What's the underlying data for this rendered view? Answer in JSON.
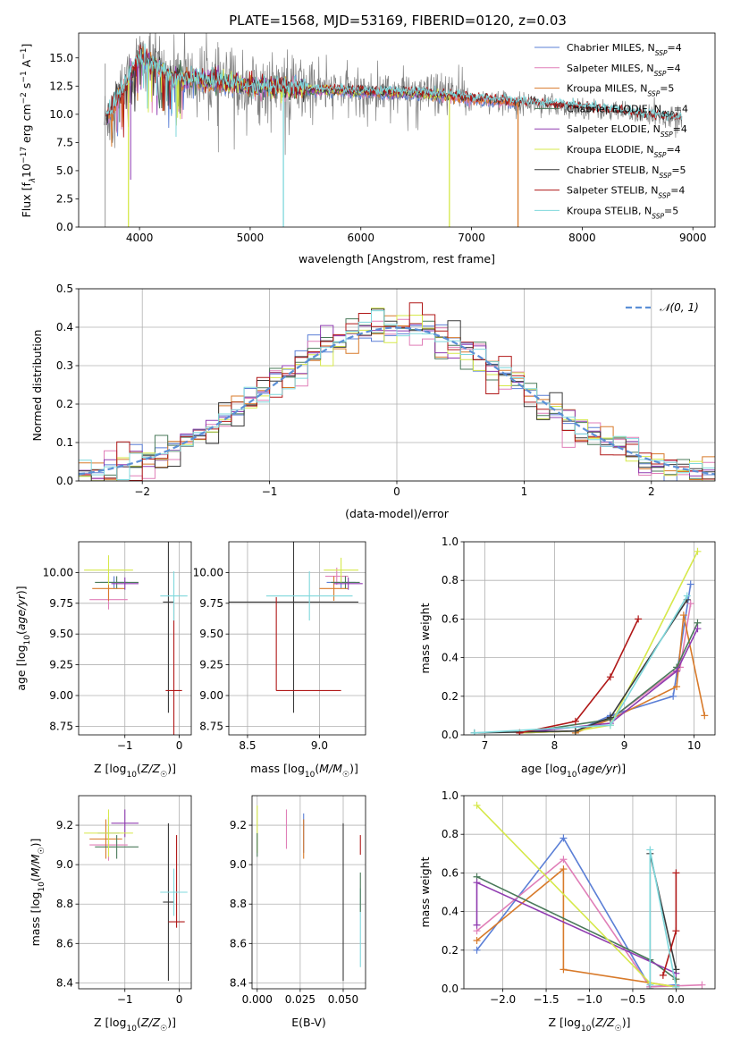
{
  "title": "PLATE=1568, MJD=53169, FIBERID=0120, z=0.03",
  "colors": {
    "chabrier_miles": "#5b7fd6",
    "salpeter_miles": "#e07fb8",
    "kroupa_miles": "#d87a2a",
    "chabrier_elodie": "#4a7a5a",
    "salpeter_elodie": "#8f3bb0",
    "kroupa_elodie": "#d6e84a",
    "chabrier_stelib": "#3a3a3a",
    "salpeter_stelib": "#b01818",
    "kroupa_stelib": "#7fd8dc",
    "data": "#808080",
    "normal": "#5b8fd6"
  },
  "chart_data": [
    {
      "id": "spectrum",
      "type": "line",
      "xlabel": "wavelength [Angstrom, rest frame]",
      "ylabel": "Flux [f_λ 10^-17 erg cm^-2 s^-1 A^-1]",
      "xlim": [
        3450,
        9200
      ],
      "ylim": [
        0,
        17.2
      ],
      "xticks": [
        4000,
        5000,
        6000,
        7000,
        8000,
        9000
      ],
      "yticks": [
        0.0,
        2.5,
        5.0,
        7.5,
        10.0,
        12.5,
        15.0
      ],
      "legend_position": "upper right",
      "legend": [
        {
          "label": "Chabrier MILES, N",
          "sub": "SSP",
          "tail": "=4",
          "key": "chabrier_miles"
        },
        {
          "label": "Salpeter MILES, N",
          "sub": "SSP",
          "tail": "=4",
          "key": "salpeter_miles"
        },
        {
          "label": "Kroupa MILES, N",
          "sub": "SSP",
          "tail": "=5",
          "key": "kroupa_miles"
        },
        {
          "label": "Chabrier ELODIE, N",
          "sub": "SSP",
          "tail": "=4",
          "key": "chabrier_elodie"
        },
        {
          "label": "Salpeter ELODIE, N",
          "sub": "SSP",
          "tail": "=4",
          "key": "salpeter_elodie"
        },
        {
          "label": "Kroupa ELODIE, N",
          "sub": "SSP",
          "tail": "=4",
          "key": "kroupa_elodie"
        },
        {
          "label": "Chabrier STELIB, N",
          "sub": "SSP",
          "tail": "=5",
          "key": "chabrier_stelib"
        },
        {
          "label": "Salpeter STELIB, N",
          "sub": "SSP",
          "tail": "=4",
          "key": "salpeter_stelib"
        },
        {
          "label": "Kroupa STELIB, N",
          "sub": "SSP",
          "tail": "=5",
          "key": "kroupa_stelib"
        }
      ],
      "model_continuum": [
        [
          3700,
          9.5
        ],
        [
          3800,
          11.5
        ],
        [
          3900,
          13.0
        ],
        [
          4000,
          15.0
        ],
        [
          4100,
          14.5
        ],
        [
          4300,
          13.2
        ],
        [
          4600,
          13.0
        ],
        [
          5000,
          12.5
        ],
        [
          5500,
          12.2
        ],
        [
          6000,
          12.0
        ],
        [
          6500,
          11.9
        ],
        [
          7000,
          11.4
        ],
        [
          7500,
          11.0
        ],
        [
          8000,
          10.6
        ],
        [
          8500,
          10.0
        ],
        [
          8900,
          9.6
        ]
      ],
      "data_noise": 1.5,
      "model_segments": [
        {
          "key": "chabrier_elodie",
          "start": 3900,
          "end": 6800
        },
        {
          "key": "salpeter_elodie",
          "start": 3900,
          "end": 6800
        },
        {
          "key": "kroupa_elodie",
          "start": 3900,
          "end": 6800
        },
        {
          "key": "chabrier_miles",
          "start": 3700,
          "end": 7420
        },
        {
          "key": "salpeter_miles",
          "start": 3700,
          "end": 7420
        },
        {
          "key": "kroupa_miles",
          "start": 3700,
          "end": 7420
        },
        {
          "key": "chabrier_stelib",
          "start": 3700,
          "end": 8900
        },
        {
          "key": "salpeter_stelib",
          "start": 3700,
          "end": 8900
        },
        {
          "key": "kroupa_stelib",
          "start": 3700,
          "end": 8900
        }
      ],
      "drops": [
        {
          "key": "kroupa_elodie",
          "x": 3900
        },
        {
          "key": "kroupa_stelib",
          "x": 5300
        },
        {
          "key": "kroupa_elodie",
          "x": 6800
        },
        {
          "key": "kroupa_miles",
          "x": 7420
        }
      ]
    },
    {
      "id": "residuals",
      "type": "step",
      "xlabel": "(data-model)/error",
      "ylabel": "Normed distribution",
      "xlim": [
        -2.5,
        2.5
      ],
      "ylim": [
        0,
        0.5
      ],
      "xticks": [
        -2,
        -1,
        0,
        1,
        2
      ],
      "yticks": [
        0.0,
        0.1,
        0.2,
        0.3,
        0.4,
        0.5
      ],
      "bin_width": 0.1,
      "legend": "𝒩(0, 1)",
      "legend_position": "upper right"
    },
    {
      "id": "age_vs_Z",
      "type": "errorbar",
      "xlabel": "Z [log10(Z/Z☉)]",
      "ylabel": "age  [log10(age/yr)]",
      "xlim": [
        -1.85,
        0.22
      ],
      "ylim": [
        8.68,
        10.25
      ],
      "xticks": [
        -1,
        0
      ],
      "yticks": [
        8.75,
        9.0,
        9.25,
        9.5,
        9.75,
        10.0
      ],
      "points": [
        {
          "key": "chabrier_miles",
          "x": -1.2,
          "y": 9.92,
          "xerr": 0.25,
          "yerr": 0.05
        },
        {
          "key": "salpeter_miles",
          "x": -1.3,
          "y": 9.78,
          "xerr": 0.35,
          "yerr": 0.08
        },
        {
          "key": "kroupa_miles",
          "x": -1.3,
          "y": 9.87,
          "xerr": 0.3,
          "yerr": 0.1
        },
        {
          "key": "chabrier_elodie",
          "x": -1.15,
          "y": 9.92,
          "xerr": 0.4,
          "yerr": 0.05
        },
        {
          "key": "salpeter_elodie",
          "x": -1.0,
          "y": 9.91,
          "xerr": 0.25,
          "yerr": 0.05
        },
        {
          "key": "kroupa_elodie",
          "x": -1.3,
          "y": 10.02,
          "xerr": 0.45,
          "yerr": 0.12
        },
        {
          "key": "chabrier_stelib",
          "x": -0.2,
          "y": 9.76,
          "xerr": 0.1,
          "yerr": 0.9
        },
        {
          "key": "salpeter_stelib",
          "x": -0.1,
          "y": 9.04,
          "xerr": 0.15,
          "yerr": 0.7
        },
        {
          "key": "kroupa_stelib",
          "x": -0.1,
          "y": 9.81,
          "xerr": 0.25,
          "yerr": 0.2
        }
      ]
    },
    {
      "id": "age_vs_mass",
      "type": "errorbar",
      "xlabel": "mass [log10(M/M☉)]",
      "ylabel": "",
      "xlim": [
        8.37,
        9.32
      ],
      "ylim": [
        8.68,
        10.25
      ],
      "xticks": [
        8.5,
        9.0
      ],
      "yticks": [
        8.75,
        9.0,
        9.25,
        9.5,
        9.75,
        10.0
      ],
      "points": [
        {
          "key": "chabrier_miles",
          "x": 9.15,
          "y": 9.92,
          "xerr": 0.1,
          "yerr": 0.05
        },
        {
          "key": "salpeter_miles",
          "x": 9.12,
          "y": 9.97,
          "xerr": 0.08,
          "yerr": 0.07
        },
        {
          "key": "kroupa_miles",
          "x": 9.1,
          "y": 9.87,
          "xerr": 0.1,
          "yerr": 0.1
        },
        {
          "key": "chabrier_elodie",
          "x": 9.18,
          "y": 9.92,
          "xerr": 0.1,
          "yerr": 0.05
        },
        {
          "key": "salpeter_elodie",
          "x": 9.2,
          "y": 9.91,
          "xerr": 0.1,
          "yerr": 0.05
        },
        {
          "key": "kroupa_elodie",
          "x": 9.15,
          "y": 10.02,
          "xerr": 0.12,
          "yerr": 0.1
        },
        {
          "key": "chabrier_stelib",
          "x": 8.82,
          "y": 9.76,
          "xerr": 0.45,
          "yerr": 0.9
        },
        {
          "key": "salpeter_stelib",
          "x": 8.7,
          "y": 9.04,
          "xerr": 0.0,
          "yerr": 0.0,
          "xrange": [
            8.7,
            9.15
          ],
          "yrange": [
            9.04,
            9.8
          ]
        },
        {
          "key": "kroupa_stelib",
          "x": 8.93,
          "y": 9.81,
          "xerr": 0.3,
          "yerr": 0.2
        }
      ]
    },
    {
      "id": "massweight_vs_age",
      "type": "line",
      "xlabel": "age  [log10(age/yr)]",
      "ylabel": "mass weight",
      "xlim": [
        6.7,
        10.3
      ],
      "ylim": [
        0,
        1
      ],
      "xticks": [
        7,
        8,
        9,
        10
      ],
      "yticks": [
        0.0,
        0.2,
        0.4,
        0.6,
        0.8,
        1.0
      ],
      "series": [
        {
          "key": "chabrier_miles",
          "x": [
            7.5,
            8.3,
            8.8,
            9.7,
            9.95
          ],
          "y": [
            0.01,
            0.02,
            0.1,
            0.2,
            0.78
          ]
        },
        {
          "key": "salpeter_miles",
          "x": [
            7.5,
            8.3,
            8.8,
            9.8,
            9.95
          ],
          "y": [
            0.01,
            0.02,
            0.08,
            0.35,
            0.68
          ]
        },
        {
          "key": "kroupa_miles",
          "x": [
            8.3,
            8.8,
            9.75,
            9.85,
            10.15
          ],
          "y": [
            0.01,
            0.08,
            0.25,
            0.62,
            0.1
          ]
        },
        {
          "key": "chabrier_elodie",
          "x": [
            7.5,
            8.8,
            9.75,
            10.05
          ],
          "y": [
            0.01,
            0.08,
            0.35,
            0.58
          ]
        },
        {
          "key": "salpeter_elodie",
          "x": [
            7.5,
            8.8,
            9.75,
            10.05
          ],
          "y": [
            0.01,
            0.06,
            0.33,
            0.55
          ]
        },
        {
          "key": "kroupa_elodie",
          "x": [
            7.5,
            8.3,
            8.8,
            10.05
          ],
          "y": [
            0.01,
            0.02,
            0.05,
            0.95
          ]
        },
        {
          "key": "chabrier_stelib",
          "x": [
            6.85,
            8.3,
            8.8,
            9.9
          ],
          "y": [
            0.01,
            0.02,
            0.09,
            0.7
          ]
        },
        {
          "key": "salpeter_stelib",
          "x": [
            7.5,
            8.3,
            8.8,
            9.2
          ],
          "y": [
            0.01,
            0.07,
            0.3,
            0.6
          ]
        },
        {
          "key": "kroupa_stelib",
          "x": [
            6.85,
            8.8,
            9.9
          ],
          "y": [
            0.01,
            0.05,
            0.72
          ]
        }
      ]
    },
    {
      "id": "mass_vs_Z",
      "type": "errorbar",
      "xlabel": "Z [log10(Z/Z☉)]",
      "ylabel": "mass [log10(M/M☉)]",
      "xlim": [
        -1.85,
        0.22
      ],
      "ylim": [
        8.37,
        9.35
      ],
      "xticks": [
        -1,
        0
      ],
      "yticks": [
        8.4,
        8.6,
        8.8,
        9.0,
        9.2
      ],
      "points": [
        {
          "key": "chabrier_miles",
          "x": -1.3,
          "y": 9.16,
          "xerr": 0.2,
          "yerr": 0.08
        },
        {
          "key": "salpeter_miles",
          "x": -1.3,
          "y": 9.1,
          "xerr": 0.35,
          "yerr": 0.08
        },
        {
          "key": "kroupa_miles",
          "x": -1.35,
          "y": 9.13,
          "xerr": 0.3,
          "yerr": 0.1
        },
        {
          "key": "chabrier_elodie",
          "x": -1.15,
          "y": 9.09,
          "xerr": 0.4,
          "yerr": 0.06
        },
        {
          "key": "salpeter_elodie",
          "x": -1.0,
          "y": 9.21,
          "xerr": 0.25,
          "yerr": 0.07
        },
        {
          "key": "kroupa_elodie",
          "x": -1.3,
          "y": 9.16,
          "xerr": 0.45,
          "yerr": 0.12
        },
        {
          "key": "chabrier_stelib",
          "x": -0.2,
          "y": 8.81,
          "xerr": 0.1,
          "yerr": 0.4
        },
        {
          "key": "salpeter_stelib",
          "x": -0.05,
          "y": 8.71,
          "xerr": 0.15,
          "yerr": 0.0,
          "yrange": [
            8.68,
            9.15
          ]
        },
        {
          "key": "kroupa_stelib",
          "x": -0.1,
          "y": 8.86,
          "xerr": 0.25,
          "yerr": 0.12
        }
      ]
    },
    {
      "id": "mass_vs_ebv",
      "type": "errorbar",
      "xlabel": "E(B-V)",
      "ylabel": "",
      "xlim": [
        -0.003,
        0.063
      ],
      "ylim": [
        8.37,
        9.35
      ],
      "xticks": [
        0.0,
        0.025,
        0.05
      ],
      "yticks": [
        8.4,
        8.6,
        8.8,
        9.0,
        9.2
      ],
      "points": [
        {
          "key": "kroupa_elodie",
          "x": 0.0,
          "y": 9.18,
          "yerr": 0.12
        },
        {
          "key": "chabrier_elodie",
          "x": 0.0,
          "y": 9.1,
          "yerr": 0.06
        },
        {
          "key": "salpeter_miles",
          "x": 0.017,
          "y": 9.18,
          "yerr": 0.1
        },
        {
          "key": "chabrier_miles",
          "x": 0.027,
          "y": 9.16,
          "yerr": 0.1
        },
        {
          "key": "kroupa_miles",
          "x": 0.027,
          "y": 9.13,
          "yerr": 0.1
        },
        {
          "key": "chabrier_stelib",
          "x": 0.05,
          "y": 8.81,
          "yerr": 0.4
        },
        {
          "key": "salpeter_stelib",
          "x": 0.06,
          "y": 9.1,
          "yerr": 0.05
        },
        {
          "key": "kroupa_stelib",
          "x": 0.06,
          "y": 8.68,
          "yerr": 0.2
        },
        {
          "key": "chabrier_elodie",
          "x": 0.06,
          "y": 8.86,
          "yerr": 0.1
        }
      ]
    },
    {
      "id": "massweight_vs_Z",
      "type": "line",
      "xlabel": "Z [log10(Z/Z☉)]",
      "ylabel": "mass weight",
      "xlim": [
        -2.45,
        0.45
      ],
      "ylim": [
        0,
        1
      ],
      "xticks": [
        -2.0,
        -1.5,
        -1.0,
        -0.5,
        0.0
      ],
      "yticks": [
        0.0,
        0.2,
        0.4,
        0.6,
        0.8,
        1.0
      ],
      "series": [
        {
          "key": "chabrier_miles",
          "x": [
            -2.3,
            -1.3,
            -0.3,
            0.0
          ],
          "y": [
            0.2,
            0.78,
            0.01,
            0.02
          ]
        },
        {
          "key": "salpeter_miles",
          "x": [
            -2.3,
            -1.3,
            -0.3,
            0.3
          ],
          "y": [
            0.3,
            0.67,
            0.01,
            0.02
          ]
        },
        {
          "key": "kroupa_miles",
          "x": [
            -2.3,
            -1.3,
            -1.3,
            0.0,
            0.0
          ],
          "y": [
            0.25,
            0.62,
            0.1,
            0.01,
            0.05
          ]
        },
        {
          "key": "chabrier_elodie",
          "x": [
            -2.3,
            -0.3,
            0.0
          ],
          "y": [
            0.58,
            0.15,
            0.05
          ]
        },
        {
          "key": "salpeter_elodie",
          "x": [
            -2.3,
            -2.3,
            0.0
          ],
          "y": [
            0.33,
            0.55,
            0.08
          ]
        },
        {
          "key": "kroupa_elodie",
          "x": [
            -2.3,
            -0.3,
            0.0
          ],
          "y": [
            0.95,
            0.03,
            0.01
          ]
        },
        {
          "key": "chabrier_stelib",
          "x": [
            -0.3,
            -0.3,
            0.0
          ],
          "y": [
            0.0,
            0.7,
            0.1
          ]
        },
        {
          "key": "salpeter_stelib",
          "x": [
            -0.15,
            0.0,
            0.0
          ],
          "y": [
            0.07,
            0.3,
            0.6
          ]
        },
        {
          "key": "kroupa_stelib",
          "x": [
            -0.3,
            -0.3,
            0.0
          ],
          "y": [
            0.02,
            0.72,
            0.01
          ]
        }
      ]
    }
  ]
}
